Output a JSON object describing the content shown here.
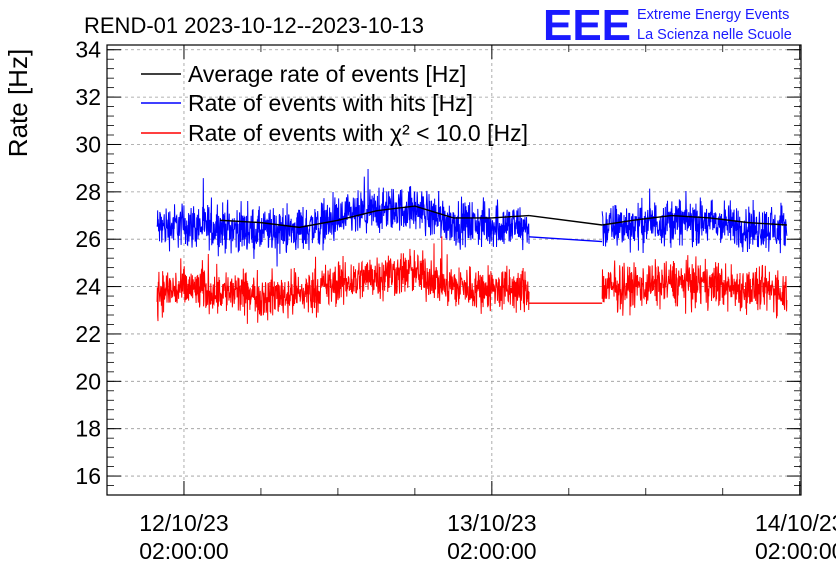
{
  "chart_data": {
    "type": "line",
    "title": "REND-01 2023-10-12--2023-10-13",
    "xlabel": "",
    "ylabel": "Rate [Hz]",
    "ylim": [
      15.2,
      34.2
    ],
    "y_ticks": [
      16,
      18,
      20,
      22,
      24,
      26,
      28,
      30,
      32,
      34
    ],
    "x_ticks": [
      {
        "date": "12/10/23",
        "time": "02:00:00",
        "hours": 0
      },
      {
        "date": "13/10/23",
        "time": "02:00:00",
        "hours": 24
      },
      {
        "date": "14/10/23",
        "time": "02:00:00",
        "hours": 48
      }
    ],
    "x_unit": "hours since 12/10/23 02:00:00",
    "xlim": [
      -6.0,
      48.1
    ],
    "grid": true,
    "legend_position": "top-left",
    "series": [
      {
        "name": "Average rate of events [Hz]",
        "color": "#000000",
        "segments": [
          {
            "x": [
              2.8,
              6.0,
              9.0,
              12.0,
              15.0,
              18.0,
              21.0,
              24.0,
              26.9
            ],
            "y": [
              26.8,
              26.7,
              26.5,
              26.8,
              27.2,
              27.4,
              26.9,
              26.9,
              27.0
            ]
          },
          {
            "x": [
              26.9,
              32.6
            ],
            "y": [
              27.0,
              26.6
            ]
          },
          {
            "x": [
              32.6,
              35.0,
              38.0,
              41.0,
              44.0,
              47.0
            ],
            "y": [
              26.6,
              26.8,
              27.0,
              26.9,
              26.7,
              26.6
            ]
          }
        ]
      },
      {
        "name": "Rate of events with hits [Hz]",
        "color": "#0000ff",
        "noise": 2.3,
        "segments": [
          {
            "x": [
              -2.1,
              0.0,
              3.0,
              6.0,
              9.0,
              12.0,
              15.0,
              18.0,
              21.0,
              24.0,
              26.9
            ],
            "y": [
              26.5,
              26.6,
              26.5,
              26.3,
              26.4,
              26.8,
              27.2,
              27.3,
              26.7,
              26.6,
              26.5
            ]
          },
          {
            "x": [
              26.9,
              32.6
            ],
            "y": [
              26.1,
              25.9
            ]
          },
          {
            "x": [
              32.6,
              35.0,
              38.0,
              41.0,
              44.0,
              47.0
            ],
            "y": [
              26.5,
              26.6,
              26.8,
              26.7,
              26.5,
              26.4
            ]
          }
        ]
      },
      {
        "name": "Rate of events with χ² < 10.0 [Hz]",
        "color": "#ff0000",
        "noise": 2.3,
        "segments": [
          {
            "x": [
              -2.1,
              0.0,
              3.0,
              6.0,
              9.0,
              12.0,
              15.0,
              18.0,
              21.0,
              24.0,
              26.9
            ],
            "y": [
              23.8,
              23.9,
              23.8,
              23.6,
              23.7,
              24.1,
              24.5,
              24.6,
              24.0,
              23.9,
              23.8
            ]
          },
          {
            "x": [
              26.9,
              32.6
            ],
            "y": [
              23.3,
              23.3
            ]
          },
          {
            "x": [
              32.6,
              35.0,
              38.0,
              41.0,
              44.0,
              47.0
            ],
            "y": [
              23.9,
              24.0,
              24.2,
              24.1,
              23.9,
              23.8
            ]
          }
        ]
      }
    ]
  },
  "logo": {
    "text": "EEE",
    "line1": "Extreme Energy Events",
    "line2": "La Scienza nelle Scuole",
    "color": "#1a1aff"
  }
}
